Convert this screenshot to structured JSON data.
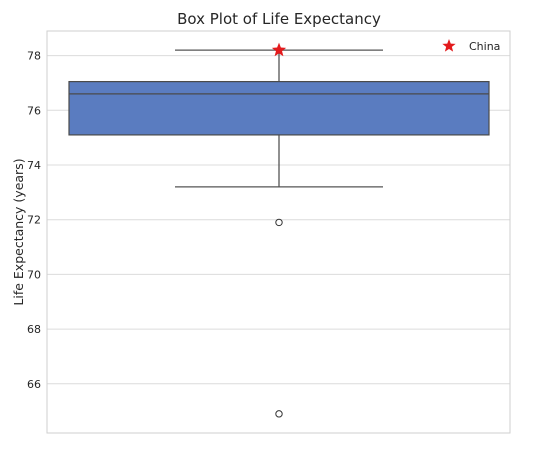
{
  "chart_data": {
    "type": "box",
    "title": "Box Plot of Life Expectancy",
    "xlabel": "",
    "ylabel": "Life Expectancy (years)",
    "ylim": [
      64.2,
      78.9
    ],
    "yticks": [
      66,
      68,
      70,
      72,
      74,
      76,
      78
    ],
    "grid": true,
    "legend": {
      "placement": "top-right",
      "entries": [
        {
          "label": "China",
          "marker": "star",
          "color": "#e31a1c"
        }
      ]
    },
    "box": {
      "whisker_low": 73.2,
      "q1": 75.1,
      "median": 76.6,
      "q3": 77.05,
      "whisker_high": 78.2,
      "outliers": [
        71.9,
        64.9
      ],
      "color": "#5a7cc0"
    },
    "highlight": {
      "label": "China",
      "value": 78.2,
      "color": "#e31a1c"
    }
  }
}
